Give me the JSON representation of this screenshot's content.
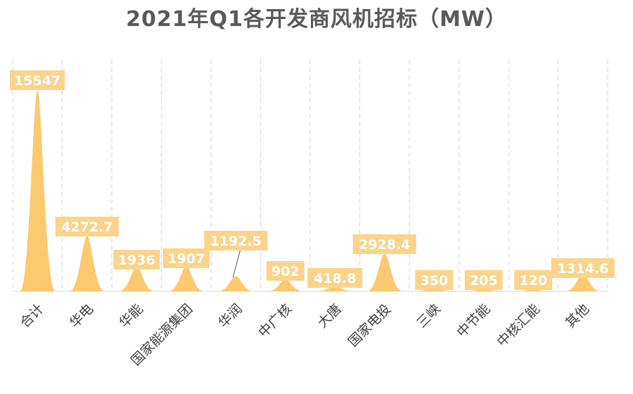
{
  "chart_data": {
    "type": "bar",
    "title": "2021年Q1各开发商风机招标（MW）",
    "xlabel": "",
    "ylabel": "",
    "categories": [
      "合计",
      "华电",
      "华能",
      "国家能源集团",
      "华润",
      "中广核",
      "大唐",
      "国家电投",
      "三峡",
      "中节能",
      "中核汇能",
      "其他"
    ],
    "values": [
      15547,
      4272.7,
      1936,
      1907,
      1192.5,
      902,
      418.8,
      2928.4,
      350,
      205,
      120,
      1314.6
    ],
    "value_labels": [
      "15547",
      "4272.7",
      "1936",
      "1907",
      "1192.5",
      "902",
      "418.8",
      "2928.4",
      "350",
      "205",
      "120",
      "1314.6"
    ],
    "ylim": [
      0,
      16000
    ],
    "grid": "vertical-dashed",
    "bar_shape": "peak",
    "colors": {
      "bar": "#FBC96E",
      "label_bg": "#FCD38A",
      "label_text": "#FFFFFF",
      "grid": "#D9D9D9",
      "category_text": "#404040",
      "title": "#595959"
    }
  }
}
